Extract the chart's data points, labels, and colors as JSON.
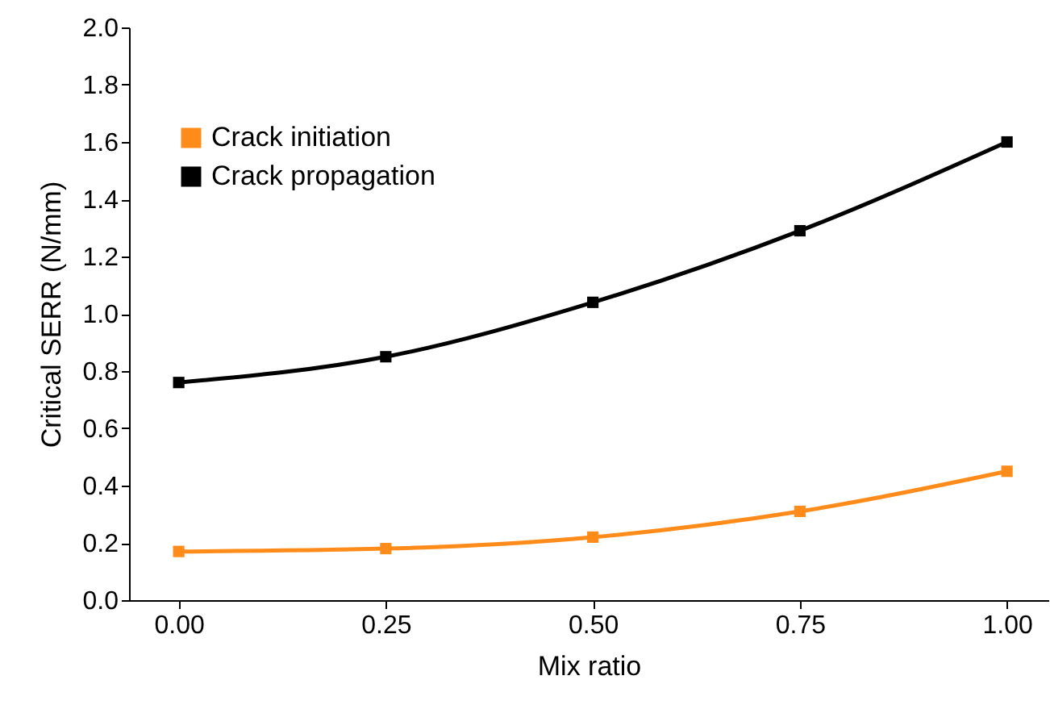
{
  "chart_data": {
    "type": "line",
    "xlabel": "Mix ratio",
    "ylabel": "Critical SERR (N/mm)",
    "x": [
      0,
      0.25,
      0.5,
      0.75,
      1
    ],
    "series": [
      {
        "name": "Crack initiation",
        "color": "#ff8c1a",
        "values": [
          0.17,
          0.18,
          0.22,
          0.31,
          0.45
        ]
      },
      {
        "name": "Crack propagation",
        "color": "#000000",
        "values": [
          0.76,
          0.85,
          1.04,
          1.29,
          1.6
        ]
      }
    ],
    "xlim": [
      -0.06,
      1.05
    ],
    "xticks": [
      {
        "value": 0,
        "label": "0.00"
      },
      0.25,
      {
        "value": 0.5,
        "label": "0.50"
      },
      0.75,
      {
        "value": 1,
        "label": "1.00"
      }
    ],
    "ylim": [
      0,
      2
    ],
    "yticks": [
      {
        "value": 0,
        "label": "0.0"
      },
      0.2,
      0.4,
      0.6,
      0.8,
      {
        "value": 1,
        "label": "1.0"
      },
      1.2,
      1.4,
      1.6,
      1.8,
      {
        "value": 2,
        "label": "2.0"
      }
    ],
    "legend": "top left",
    "marker": "square",
    "line_style": "solid"
  }
}
